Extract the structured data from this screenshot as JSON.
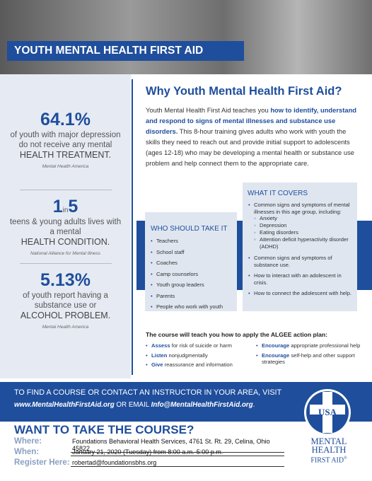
{
  "header": {
    "title": "YOUTH MENTAL HEALTH FIRST AID"
  },
  "stats": [
    {
      "figure": "64.1%",
      "text": "of youth with major depression do not receive any mental",
      "emphasis": "HEALTH TREATMENT.",
      "source": "Mental Health America"
    },
    {
      "figure": "1",
      "figure_in": "in",
      "figure_end": "5",
      "text": "teens & young adults lives with a mental",
      "emphasis": "HEALTH CONDITION.",
      "source": "National Alliance for Mental Illness"
    },
    {
      "figure": "5.13%",
      "text": "of youth report having a substance use or",
      "emphasis": "ALCOHOL PROBLEM.",
      "source": "Mental Health America"
    }
  ],
  "why": {
    "heading": "Why Youth Mental Health First Aid?",
    "paragraph": [
      {
        "text": "Youth Mental Health First Aid teaches you ",
        "bold": false
      },
      {
        "text": "how to identify, understand and respond to signs of mental illnesses and substance use disorders.",
        "bold": true
      },
      {
        "text": " This 8-hour training gives adults who work with youth the skills they need to reach out and provide initial support to adolescents (ages 12-18) who may be developing a mental health or substance use problem and help connect them to the appropriate care.",
        "bold": false
      }
    ]
  },
  "who": {
    "heading": "WHO SHOULD TAKE IT",
    "items": [
      "Teachers",
      "School staff",
      "Coaches",
      "Camp counselors",
      "Youth group leaders",
      "Parents",
      "People who work with youth"
    ]
  },
  "covers": {
    "heading": "WHAT IT COVERS",
    "items": [
      {
        "text": "Common signs and symptoms of mental illnesses in this age group, including:",
        "subitems": [
          "Anxiety",
          "Depression",
          "Eating disorders",
          "Attention deficit hyperactivity disorder (ADHD)"
        ]
      },
      {
        "text": "Common signs and symptoms of substance use.",
        "subitems": []
      },
      {
        "text": "How to interact with an adolescent in crisis.",
        "subitems": []
      },
      {
        "text": "How to connect the adolescent with help.",
        "subitems": []
      }
    ]
  },
  "algee": {
    "heading": "The course will teach you how to apply the ALGEE action plan:",
    "items": [
      {
        "bold": "Assess",
        "text": " for risk of suicide or harm"
      },
      {
        "bold": "Listen",
        "text": " nonjudgmentally"
      },
      {
        "bold": "Give",
        "text": " reassurance and information"
      },
      {
        "bold": "Encourage",
        "text": " appropriate professional help"
      },
      {
        "bold": "Encourage",
        "text": " self-help and other support strategies"
      }
    ]
  },
  "footer": {
    "line1": "TO FIND A COURSE OR CONTACT AN INSTRUCTOR IN YOUR AREA, VISIT",
    "url": "www.MentalHealthFirstAid.org",
    "or_email": " OR EMAIL ",
    "email": "Info@MentalHealthFirstAid.org",
    "period": "."
  },
  "course": {
    "heading": "WANT TO TAKE THE COURSE?",
    "fields": [
      {
        "label": "Where:",
        "value": "Foundations Behavioral Health Services, 4761 St. Rt. 29, Celina, Ohio 45822"
      },
      {
        "label": "When:",
        "value": "January 21, 2020 (Tuesday) from 8:00 a.m.-5:00 p.m."
      },
      {
        "label": "Register Here:",
        "value": "robertad@foundationsbhs.org"
      }
    ]
  },
  "logo": {
    "country": "USA",
    "line1": "MENTAL",
    "line2": "HEALTH",
    "line3": "FIRST AID",
    "mark": "®"
  }
}
